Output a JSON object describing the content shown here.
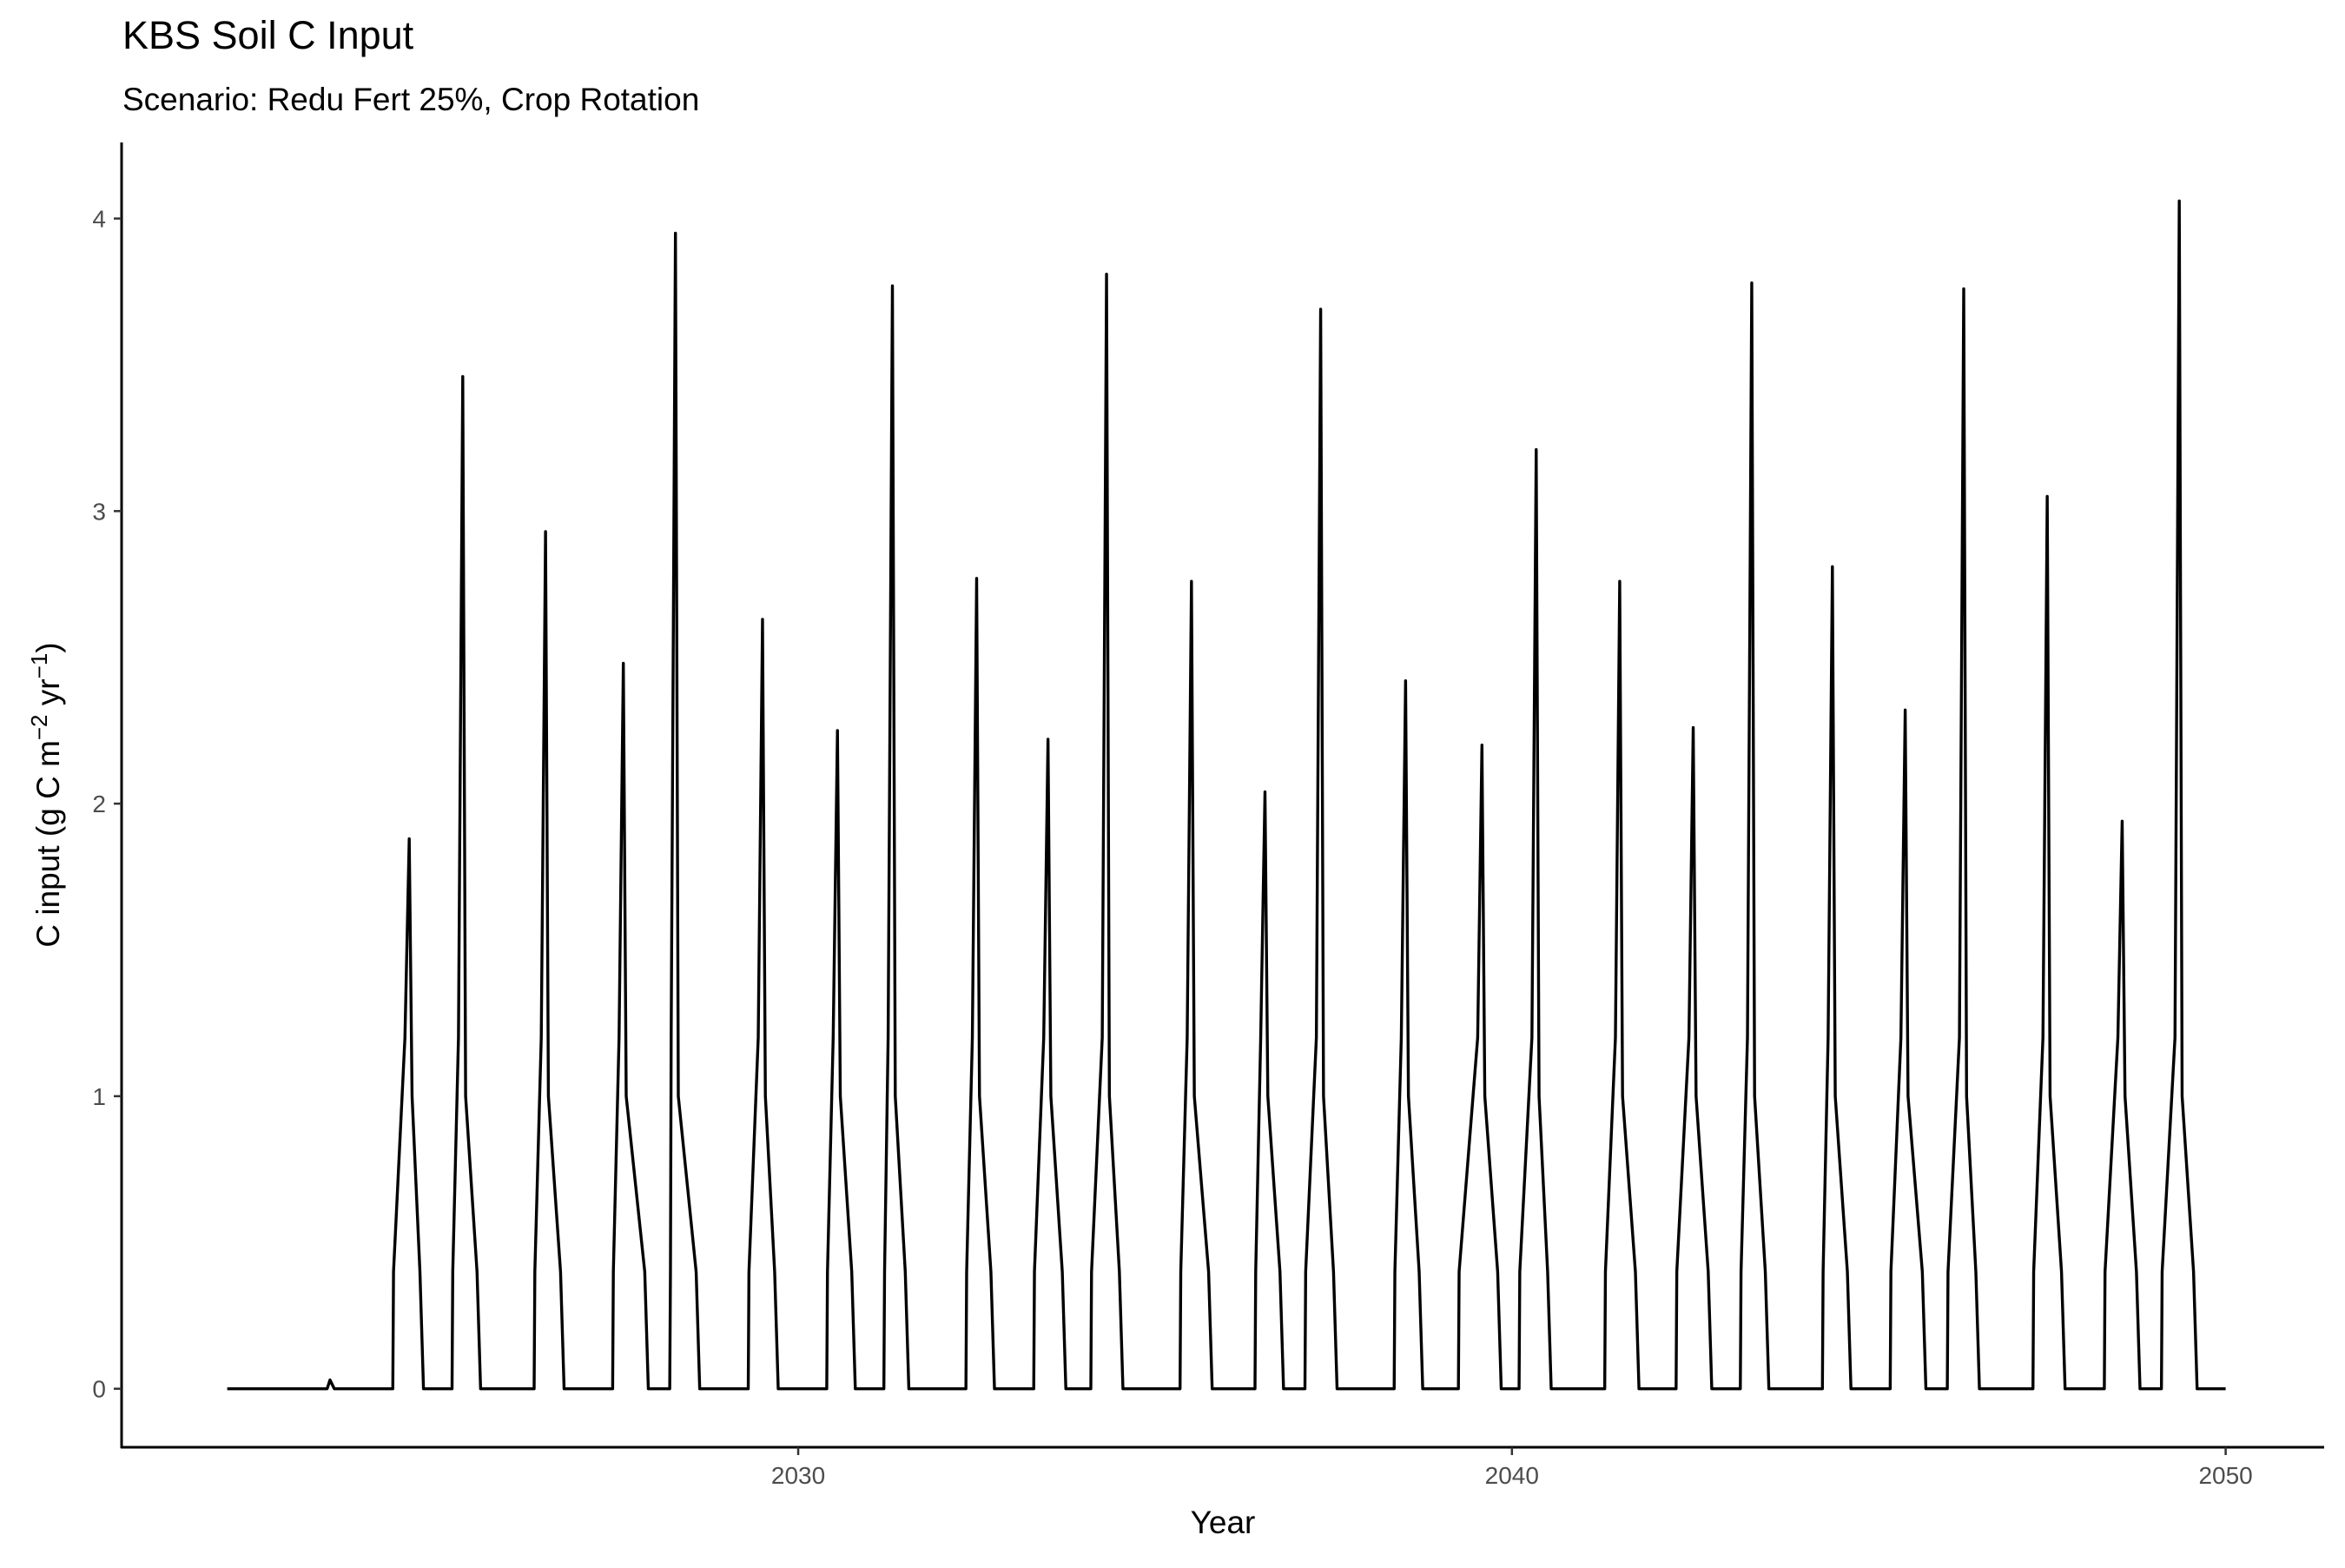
{
  "chart_data": {
    "type": "line",
    "title": "KBS Soil C Input",
    "subtitle": "Scenario: Redu Fert 25%, Crop Rotation",
    "xlabel": "Year",
    "ylabel": {
      "text": "C input (g C m",
      "sup1": "−2",
      "mid": " yr",
      "sup2": "−1",
      "end": ")"
    },
    "xlim": [
      2020.52,
      2051.38
    ],
    "xticks": [
      2030,
      2040,
      2050
    ],
    "ylim": [
      -0.2,
      4.26
    ],
    "yticks": [
      0,
      1,
      2,
      3,
      4
    ],
    "grid": false,
    "series": [
      {
        "color": "#000000",
        "x": [
          2022.0,
          2023.4,
          2023.44,
          2023.5,
          2024.32,
          2024.33,
          2024.49,
          2024.55,
          2024.59,
          2024.7,
          2024.75,
          2025.15,
          2025.16,
          2025.24,
          2025.3,
          2025.34,
          2025.5,
          2025.55,
          2026.3,
          2026.31,
          2026.4,
          2026.46,
          2026.5,
          2026.67,
          2026.72,
          2027.4,
          2027.41,
          2027.49,
          2027.55,
          2027.59,
          2027.85,
          2027.9,
          2028.2,
          2028.21,
          2028.22,
          2028.28,
          2028.32,
          2028.57,
          2028.62,
          2029.3,
          2029.31,
          2029.44,
          2029.5,
          2029.54,
          2029.67,
          2029.72,
          2030.4,
          2030.41,
          2030.49,
          2030.55,
          2030.59,
          2030.75,
          2030.8,
          2031.2,
          2031.21,
          2031.26,
          2031.32,
          2031.36,
          2031.5,
          2031.55,
          2032.35,
          2032.36,
          2032.44,
          2032.5,
          2032.54,
          2032.7,
          2032.75,
          2033.3,
          2033.31,
          2033.44,
          2033.5,
          2033.54,
          2033.7,
          2033.75,
          2034.1,
          2034.11,
          2034.26,
          2034.32,
          2034.36,
          2034.5,
          2034.55,
          2035.35,
          2035.36,
          2035.45,
          2035.51,
          2035.55,
          2035.75,
          2035.8,
          2036.4,
          2036.41,
          2036.48,
          2036.54,
          2036.58,
          2036.75,
          2036.8,
          2037.1,
          2037.11,
          2037.26,
          2037.32,
          2037.36,
          2037.5,
          2037.55,
          2038.35,
          2038.36,
          2038.45,
          2038.51,
          2038.55,
          2038.7,
          2038.75,
          2039.25,
          2039.26,
          2039.52,
          2039.58,
          2039.62,
          2039.8,
          2039.85,
          2040.1,
          2040.11,
          2040.28,
          2040.34,
          2040.38,
          2040.5,
          2040.55,
          2041.3,
          2041.31,
          2041.45,
          2041.51,
          2041.55,
          2041.73,
          2041.78,
          2042.3,
          2042.31,
          2042.48,
          2042.54,
          2042.58,
          2042.75,
          2042.8,
          2043.2,
          2043.21,
          2043.3,
          2043.36,
          2043.4,
          2043.55,
          2043.6,
          2044.35,
          2044.36,
          2044.43,
          2044.49,
          2044.53,
          2044.7,
          2044.75,
          2045.3,
          2045.31,
          2045.45,
          2045.51,
          2045.55,
          2045.75,
          2045.8,
          2046.1,
          2046.11,
          2046.27,
          2046.33,
          2046.37,
          2046.5,
          2046.55,
          2047.3,
          2047.31,
          2047.44,
          2047.5,
          2047.54,
          2047.7,
          2047.75,
          2048.3,
          2048.31,
          2048.49,
          2048.55,
          2048.59,
          2048.75,
          2048.8,
          2049.1,
          2049.11,
          2049.29,
          2049.35,
          2049.39,
          2049.55,
          2049.6,
          2050.0
        ],
        "values": [
          0,
          0,
          0.03,
          0,
          0,
          0.4,
          1.2,
          1.88,
          1.0,
          0.4,
          0,
          0,
          0.4,
          1.2,
          3.46,
          1.0,
          0.4,
          0,
          0,
          0.4,
          1.2,
          2.93,
          1.0,
          0.4,
          0,
          0,
          0.4,
          1.2,
          2.48,
          1.0,
          0.4,
          0,
          0,
          0.4,
          1.2,
          3.95,
          1.0,
          0.4,
          0,
          0,
          0.4,
          1.2,
          2.63,
          1.0,
          0.4,
          0,
          0,
          0.4,
          1.2,
          2.25,
          1.0,
          0.4,
          0,
          0,
          0.4,
          1.2,
          3.77,
          1.0,
          0.4,
          0,
          0,
          0.4,
          1.2,
          2.77,
          1.0,
          0.4,
          0,
          0,
          0.4,
          1.2,
          2.22,
          1.0,
          0.4,
          0,
          0,
          0.4,
          1.2,
          3.81,
          1.0,
          0.4,
          0,
          0,
          0.4,
          1.2,
          2.76,
          1.0,
          0.4,
          0,
          0,
          0.4,
          1.2,
          2.04,
          1.0,
          0.4,
          0,
          0,
          0.4,
          1.2,
          3.69,
          1.0,
          0.4,
          0,
          0,
          0.4,
          1.2,
          2.42,
          1.0,
          0.4,
          0,
          0,
          0.4,
          1.2,
          2.2,
          1.0,
          0.4,
          0,
          0,
          0.4,
          1.2,
          3.21,
          1.0,
          0.4,
          0,
          0,
          0.4,
          1.2,
          2.76,
          1.0,
          0.4,
          0,
          0,
          0.4,
          1.2,
          2.26,
          1.0,
          0.4,
          0,
          0,
          0.4,
          1.2,
          3.78,
          1.0,
          0.4,
          0,
          0,
          0.4,
          1.2,
          2.81,
          1.0,
          0.4,
          0,
          0,
          0.4,
          1.2,
          2.32,
          1.0,
          0.4,
          0,
          0,
          0.4,
          1.2,
          3.76,
          1.0,
          0.4,
          0,
          0,
          0.4,
          1.2,
          3.05,
          1.0,
          0.4,
          0,
          0,
          0.4,
          1.2,
          1.94,
          1.0,
          0.4,
          0,
          0,
          0.4,
          1.2,
          4.06,
          1.0,
          0.4,
          0,
          0
        ]
      }
    ]
  }
}
